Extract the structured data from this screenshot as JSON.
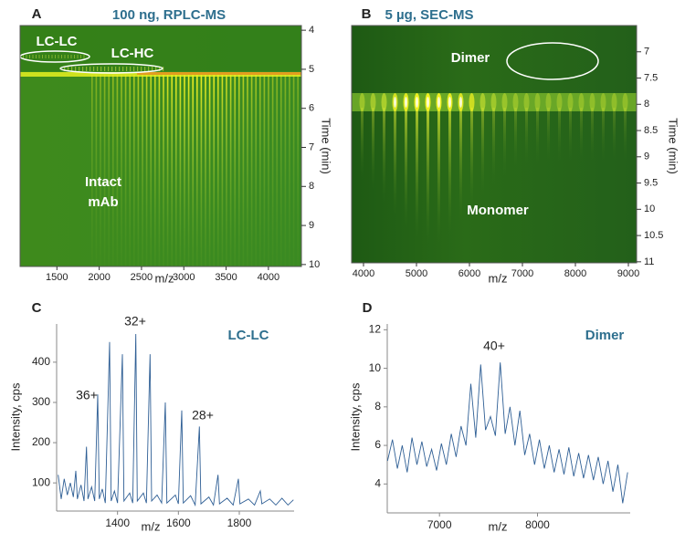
{
  "chart_data": [
    {
      "type": "heatmap",
      "panel": "A",
      "title": "100 ng, RPLC-MS",
      "xlabel": "m/z",
      "ylabel": "Time (min)",
      "xlim": [
        1065,
        4390
      ],
      "xticks": [
        1500,
        2000,
        2500,
        3000,
        3500,
        4000
      ],
      "ylim": [
        3.88,
        10.05
      ],
      "yticks": [
        4,
        5,
        6,
        7,
        8,
        9,
        10
      ],
      "annotations": [
        "LC-LC",
        "LC-HC",
        "Intact",
        "mAb"
      ]
    },
    {
      "type": "heatmap",
      "panel": "B",
      "title": "5 µg, SEC-MS",
      "xlabel": "m/z",
      "ylabel": "Time (min)",
      "xlim": [
        3776,
        9155
      ],
      "xticks": [
        4000,
        5000,
        6000,
        7000,
        8000,
        9000
      ],
      "ylim": [
        6.5,
        11.02
      ],
      "yticks": [
        7,
        7.5,
        8,
        8.5,
        9,
        9.5,
        10,
        10.5,
        11
      ],
      "annotations": [
        "Dimer",
        "Monomer"
      ]
    },
    {
      "type": "line",
      "panel": "C",
      "xlabel": "m/z",
      "ylabel": "Intensity, cps",
      "color": "#2f5f95",
      "xlim": [
        1200,
        1980
      ],
      "xticks": [
        1400,
        1600,
        1800
      ],
      "ylim": [
        30,
        495
      ],
      "yticks": [
        100,
        200,
        300,
        400
      ],
      "annotations": [
        "LC-LC",
        "36+",
        "32+",
        "28+"
      ],
      "x": [
        1205,
        1215,
        1225,
        1235,
        1245,
        1255,
        1263,
        1268,
        1280,
        1290,
        1298,
        1303,
        1315,
        1325,
        1335,
        1340,
        1350,
        1360,
        1374,
        1379,
        1390,
        1400,
        1416,
        1421,
        1440,
        1450,
        1460,
        1465,
        1485,
        1495,
        1507,
        1512,
        1530,
        1545,
        1557,
        1562,
        1590,
        1600,
        1611,
        1616,
        1640,
        1655,
        1669,
        1674,
        1700,
        1715,
        1730,
        1735,
        1760,
        1780,
        1797,
        1802,
        1830,
        1850,
        1869,
        1874,
        1900,
        1920,
        1940,
        1960,
        1978
      ],
      "values": [
        120,
        60,
        110,
        70,
        100,
        65,
        130,
        60,
        95,
        55,
        190,
        60,
        90,
        55,
        320,
        60,
        85,
        50,
        450,
        55,
        80,
        50,
        420,
        55,
        75,
        50,
        470,
        55,
        75,
        50,
        420,
        55,
        70,
        50,
        300,
        50,
        70,
        48,
        280,
        50,
        68,
        45,
        240,
        48,
        65,
        45,
        120,
        48,
        62,
        45,
        110,
        48,
        60,
        45,
        80,
        48,
        60,
        45,
        62,
        45,
        58
      ]
    },
    {
      "type": "line",
      "panel": "D",
      "xlabel": "m/z",
      "ylabel": "Intensity, cps",
      "color": "#2f5f95",
      "xlim": [
        6467,
        8946
      ],
      "xticks": [
        7000,
        8000
      ],
      "ylim": [
        2.5,
        12.3
      ],
      "yticks": [
        4,
        6,
        8,
        10,
        12
      ],
      "annotations": [
        "Dimer",
        "40+"
      ],
      "x": [
        6470,
        6520,
        6570,
        6620,
        6670,
        6720,
        6770,
        6820,
        6870,
        6920,
        6970,
        7020,
        7070,
        7120,
        7170,
        7220,
        7270,
        7320,
        7370,
        7420,
        7470,
        7520,
        7570,
        7620,
        7670,
        7720,
        7770,
        7820,
        7870,
        7920,
        7970,
        8020,
        8070,
        8120,
        8170,
        8220,
        8270,
        8320,
        8370,
        8420,
        8470,
        8520,
        8570,
        8620,
        8670,
        8720,
        8770,
        8820,
        8870,
        8920
      ],
      "values": [
        5.2,
        6.3,
        4.8,
        6.0,
        4.6,
        6.4,
        5.0,
        6.2,
        4.9,
        5.8,
        4.7,
        6.1,
        5.0,
        6.6,
        5.4,
        7.0,
        6.0,
        9.2,
        6.4,
        10.2,
        6.8,
        7.5,
        6.5,
        10.3,
        6.6,
        8.0,
        6.0,
        7.8,
        5.5,
        6.6,
        5.0,
        6.3,
        4.8,
        6.0,
        4.6,
        5.8,
        4.5,
        5.9,
        4.4,
        5.6,
        4.3,
        5.5,
        4.2,
        5.4,
        4.0,
        5.2,
        3.6,
        5.0,
        3.0,
        4.6
      ]
    }
  ]
}
